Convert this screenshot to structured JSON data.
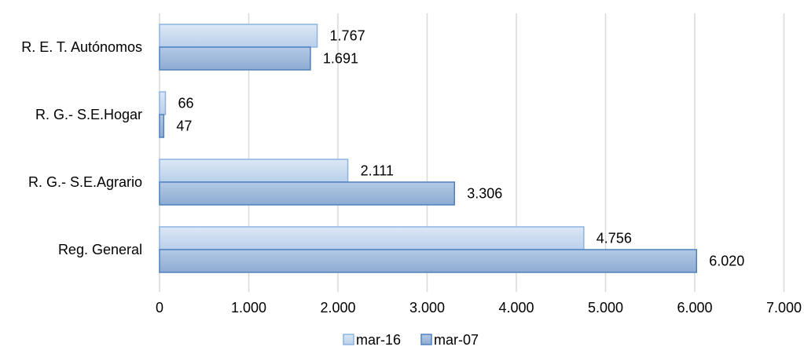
{
  "chart_data": {
    "type": "bar",
    "orientation": "horizontal",
    "categories": [
      "R. E. T. Autónomos",
      "R. G.- S.E.Hogar",
      "R. G.- S.E.Agrario",
      "Reg. General"
    ],
    "series": [
      {
        "name": "mar-16",
        "values": [
          1767,
          66,
          2111,
          4756
        ],
        "labels": [
          "1.767",
          "66",
          "2.111",
          "4.756"
        ],
        "color": "#c5d9f1"
      },
      {
        "name": "mar-07",
        "values": [
          1691,
          47,
          3306,
          6020
        ],
        "labels": [
          "1.691",
          "47",
          "3.306",
          "6.020"
        ],
        "color": "#95b3d7"
      }
    ],
    "xlim": [
      0,
      7000
    ],
    "x_ticks": [
      0,
      1000,
      2000,
      3000,
      4000,
      5000,
      6000,
      7000
    ],
    "x_tick_labels": [
      "0",
      "1.000",
      "2.000",
      "3.000",
      "4.000",
      "5.000",
      "6.000",
      "7.000"
    ],
    "grid": true,
    "legend_position": "bottom"
  }
}
